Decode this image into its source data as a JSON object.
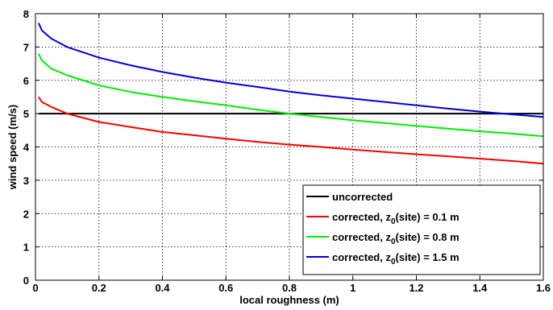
{
  "chart_data": {
    "type": "line",
    "title": "",
    "xlabel": "local roughness (m)",
    "ylabel": "wind speed (m/s)",
    "xlim": [
      0,
      1.6
    ],
    "ylim": [
      0,
      8
    ],
    "x_ticks": [
      "0",
      "0.2",
      "0.4",
      "0.6",
      "0.8",
      "1",
      "1.2",
      "1.4",
      "1.6"
    ],
    "y_ticks": [
      "0",
      "1",
      "2",
      "3",
      "4",
      "5",
      "6",
      "7",
      "8"
    ],
    "grid": true,
    "legend_position": "bottom-right",
    "series": [
      {
        "name": "uncorrected",
        "legend_main": "uncorrected",
        "legend_sub": "",
        "legend_tail": "",
        "color": "#000000",
        "x": [
          0.01,
          0.05,
          0.1,
          0.2,
          0.3,
          0.4,
          0.5,
          0.6,
          0.7,
          0.8,
          0.9,
          1.0,
          1.1,
          1.2,
          1.3,
          1.4,
          1.5,
          1.6
        ],
        "y": [
          5.0,
          5.0,
          5.0,
          5.0,
          5.0,
          5.0,
          5.0,
          5.0,
          5.0,
          5.0,
          5.0,
          5.0,
          5.0,
          5.0,
          5.0,
          5.0,
          5.0,
          5.0
        ]
      },
      {
        "name": "corrected, z0(site) = 0.1 m",
        "legend_main": "corrected, z",
        "legend_sub": "0",
        "legend_tail": "(site) = 0.1 m",
        "color": "#ff0000",
        "x": [
          0.01,
          0.02,
          0.05,
          0.1,
          0.2,
          0.3,
          0.4,
          0.5,
          0.6,
          0.7,
          0.8,
          0.9,
          1.0,
          1.1,
          1.2,
          1.3,
          1.4,
          1.5,
          1.6
        ],
        "y": [
          5.5,
          5.35,
          5.2,
          5.0,
          4.75,
          4.6,
          4.45,
          4.35,
          4.25,
          4.15,
          4.07,
          4.0,
          3.92,
          3.85,
          3.78,
          3.72,
          3.65,
          3.58,
          3.5
        ]
      },
      {
        "name": "corrected, z0(site) = 0.8 m",
        "legend_main": "corrected, z",
        "legend_sub": "0",
        "legend_tail": "(site) = 0.8 m",
        "color": "#00ee00",
        "x": [
          0.01,
          0.02,
          0.05,
          0.1,
          0.2,
          0.3,
          0.4,
          0.5,
          0.6,
          0.7,
          0.8,
          0.9,
          1.0,
          1.1,
          1.2,
          1.3,
          1.4,
          1.5,
          1.6
        ],
        "y": [
          6.8,
          6.6,
          6.35,
          6.15,
          5.85,
          5.65,
          5.5,
          5.37,
          5.25,
          5.12,
          5.0,
          4.9,
          4.8,
          4.72,
          4.63,
          4.55,
          4.47,
          4.4,
          4.32
        ]
      },
      {
        "name": "corrected, z0(site) = 1.5 m",
        "legend_main": "corrected, z",
        "legend_sub": "0",
        "legend_tail": "(site) = 1.5 m",
        "color": "#0000dd",
        "x": [
          0.01,
          0.02,
          0.05,
          0.1,
          0.2,
          0.3,
          0.4,
          0.5,
          0.6,
          0.7,
          0.8,
          0.9,
          1.0,
          1.1,
          1.2,
          1.3,
          1.4,
          1.5,
          1.6
        ],
        "y": [
          7.72,
          7.5,
          7.25,
          7.0,
          6.68,
          6.45,
          6.25,
          6.08,
          5.93,
          5.8,
          5.66,
          5.55,
          5.45,
          5.35,
          5.25,
          5.15,
          5.06,
          4.98,
          4.9
        ]
      }
    ]
  }
}
